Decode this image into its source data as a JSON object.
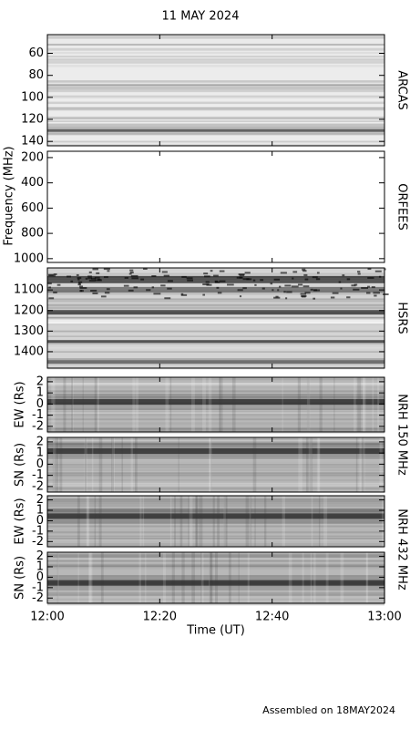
{
  "chart_data": {
    "type": "spectrogram",
    "title": "11 MAY 2024",
    "xlabel": "Time (UT)",
    "xlim": [
      0,
      60
    ],
    "xticks": [
      {
        "value": 0,
        "label": "12:00"
      },
      {
        "value": 20,
        "label": "12:20"
      },
      {
        "value": 40,
        "label": "12:40"
      },
      {
        "value": 60,
        "label": "13:00"
      }
    ],
    "ylabel": "Frequency (MHz)",
    "panels": [
      {
        "label": "ARCAS",
        "ylim": [
          144,
          43
        ],
        "yticks": [
          60,
          80,
          100,
          120,
          140
        ]
      },
      {
        "label": "ORFEES",
        "ylim": [
          1030,
          150
        ],
        "yticks": [
          200,
          400,
          600,
          800,
          1000
        ]
      },
      {
        "label": "HSRS",
        "ylim": [
          1480,
          993
        ],
        "yticks": [
          1100,
          1200,
          1300,
          1400
        ]
      },
      {
        "ylabel": "EW (Rs)",
        "ylim": [
          -2.5,
          2.4
        ],
        "yticks": [
          -2,
          -1,
          0,
          1,
          2
        ]
      },
      {
        "ylabel": "SN (Rs)",
        "ylim": [
          -2.5,
          2.4
        ],
        "yticks": [
          -2,
          -1,
          0,
          1,
          2
        ]
      },
      {
        "ylabel": "EW (Rs)",
        "ylim": [
          -2.5,
          2.4
        ],
        "yticks": [
          -2,
          -1,
          0,
          1,
          2
        ]
      },
      {
        "ylabel": "SN (Rs)",
        "ylim": [
          -2.5,
          2.4
        ],
        "yticks": [
          -2,
          -1,
          0,
          1,
          2
        ]
      }
    ],
    "group_labels": [
      "NRH 150 MHz",
      "NRH 432 MHz"
    ],
    "footnote": "Assembled on 18MAY2024"
  }
}
